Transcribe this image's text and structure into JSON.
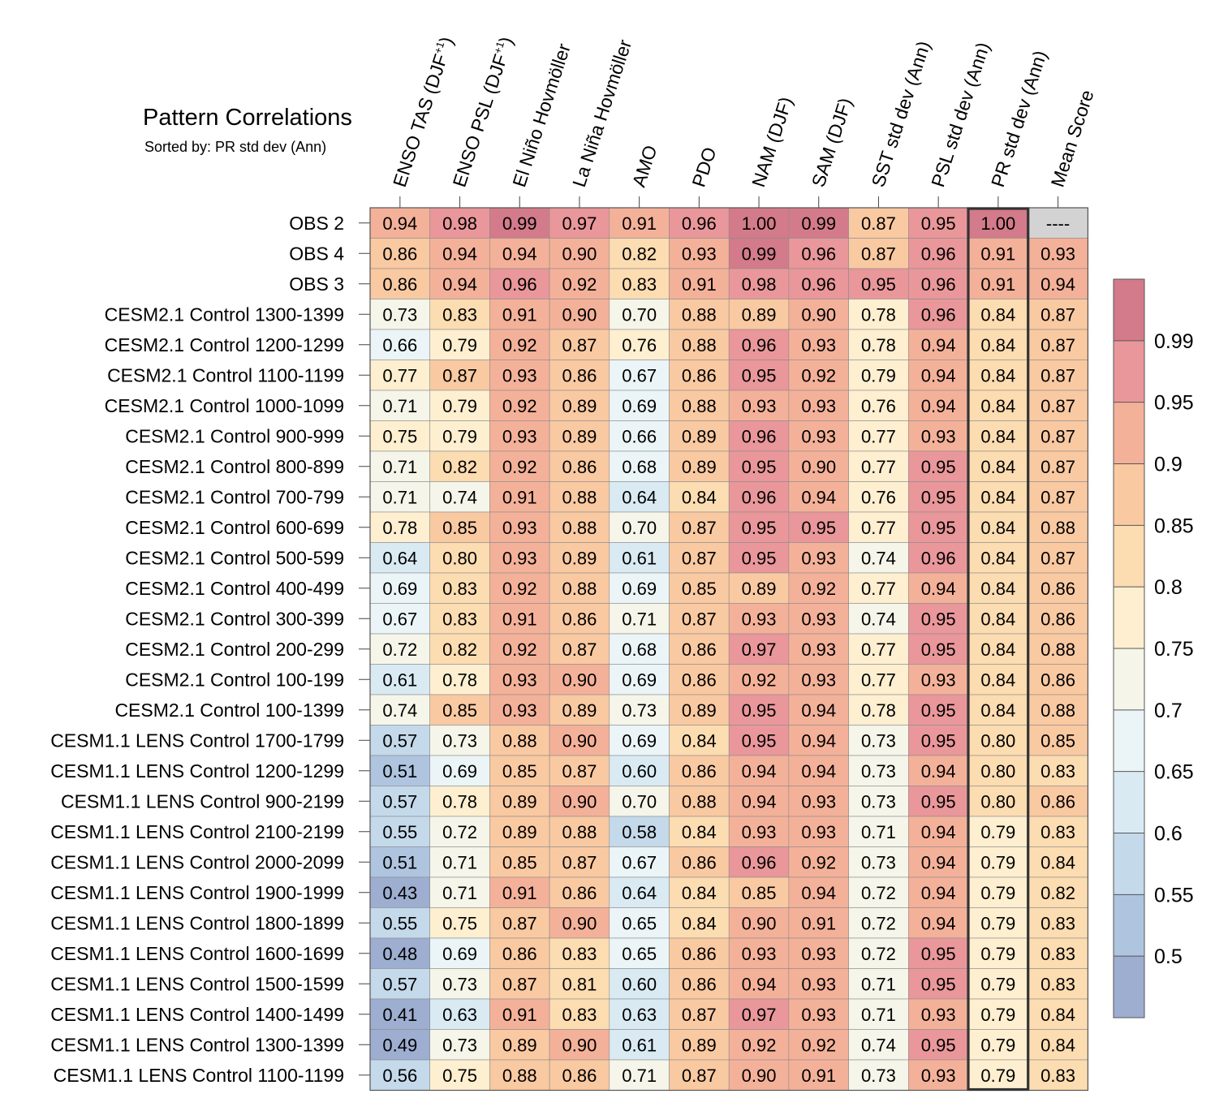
{
  "chart_data": {
    "type": "heatmap",
    "title": "Pattern Correlations",
    "subtitle": "Sorted by: PR std dev (Ann)",
    "columns": [
      {
        "label": "ENSO TAS (DJF",
        "sup": "+1",
        "tail": ")"
      },
      {
        "label": "ENSO PSL (DJF",
        "sup": "+1",
        "tail": ")"
      },
      {
        "label": "El Niño Hovmöller",
        "sup": "",
        "tail": ""
      },
      {
        "label": "La Niña Hovmöller",
        "sup": "",
        "tail": ""
      },
      {
        "label": "AMO",
        "sup": "",
        "tail": ""
      },
      {
        "label": "PDO",
        "sup": "",
        "tail": ""
      },
      {
        "label": "NAM (DJF)",
        "sup": "",
        "tail": ""
      },
      {
        "label": "SAM (DJF)",
        "sup": "",
        "tail": ""
      },
      {
        "label": "SST std dev (Ann)",
        "sup": "",
        "tail": ""
      },
      {
        "label": "PSL std dev (Ann)",
        "sup": "",
        "tail": ""
      },
      {
        "label": "PR std dev (Ann)",
        "sup": "",
        "tail": ""
      },
      {
        "label": "Mean Score",
        "sup": "",
        "tail": ""
      }
    ],
    "highlighted_column": 10,
    "missing_text": "----",
    "missing_color": "#d3d3d3",
    "rows": [
      {
        "label": "OBS 2",
        "values": [
          "0.94",
          "0.98",
          "0.99",
          "0.97",
          "0.91",
          "0.96",
          "1.00",
          "0.99",
          "0.87",
          "0.95",
          "1.00",
          null
        ]
      },
      {
        "label": "OBS 4",
        "values": [
          "0.86",
          "0.94",
          "0.94",
          "0.90",
          "0.82",
          "0.93",
          "0.99",
          "0.96",
          "0.87",
          "0.96",
          "0.91",
          "0.93"
        ]
      },
      {
        "label": "OBS 3",
        "values": [
          "0.86",
          "0.94",
          "0.96",
          "0.92",
          "0.83",
          "0.91",
          "0.98",
          "0.96",
          "0.95",
          "0.96",
          "0.91",
          "0.94"
        ]
      },
      {
        "label": "CESM2.1 Control 1300-1399",
        "values": [
          "0.73",
          "0.83",
          "0.91",
          "0.90",
          "0.70",
          "0.88",
          "0.89",
          "0.90",
          "0.78",
          "0.96",
          "0.84",
          "0.87"
        ]
      },
      {
        "label": "CESM2.1 Control 1200-1299",
        "values": [
          "0.66",
          "0.79",
          "0.92",
          "0.87",
          "0.76",
          "0.88",
          "0.96",
          "0.93",
          "0.78",
          "0.94",
          "0.84",
          "0.87"
        ]
      },
      {
        "label": "CESM2.1 Control 1100-1199",
        "values": [
          "0.77",
          "0.87",
          "0.93",
          "0.86",
          "0.67",
          "0.86",
          "0.95",
          "0.92",
          "0.79",
          "0.94",
          "0.84",
          "0.87"
        ]
      },
      {
        "label": "CESM2.1 Control 1000-1099",
        "values": [
          "0.71",
          "0.79",
          "0.92",
          "0.89",
          "0.69",
          "0.88",
          "0.93",
          "0.93",
          "0.76",
          "0.94",
          "0.84",
          "0.87"
        ]
      },
      {
        "label": "CESM2.1 Control 900-999",
        "values": [
          "0.75",
          "0.79",
          "0.93",
          "0.89",
          "0.66",
          "0.89",
          "0.96",
          "0.93",
          "0.77",
          "0.93",
          "0.84",
          "0.87"
        ]
      },
      {
        "label": "CESM2.1 Control 800-899",
        "values": [
          "0.71",
          "0.82",
          "0.92",
          "0.86",
          "0.68",
          "0.89",
          "0.95",
          "0.90",
          "0.77",
          "0.95",
          "0.84",
          "0.87"
        ]
      },
      {
        "label": "CESM2.1 Control 700-799",
        "values": [
          "0.71",
          "0.74",
          "0.91",
          "0.88",
          "0.64",
          "0.84",
          "0.96",
          "0.94",
          "0.76",
          "0.95",
          "0.84",
          "0.87"
        ]
      },
      {
        "label": "CESM2.1 Control 600-699",
        "values": [
          "0.78",
          "0.85",
          "0.93",
          "0.88",
          "0.70",
          "0.87",
          "0.95",
          "0.95",
          "0.77",
          "0.95",
          "0.84",
          "0.88"
        ]
      },
      {
        "label": "CESM2.1 Control 500-599",
        "values": [
          "0.64",
          "0.80",
          "0.93",
          "0.89",
          "0.61",
          "0.87",
          "0.95",
          "0.93",
          "0.74",
          "0.96",
          "0.84",
          "0.87"
        ]
      },
      {
        "label": "CESM2.1 Control 400-499",
        "values": [
          "0.69",
          "0.83",
          "0.92",
          "0.88",
          "0.69",
          "0.85",
          "0.89",
          "0.92",
          "0.77",
          "0.94",
          "0.84",
          "0.86"
        ]
      },
      {
        "label": "CESM2.1 Control 300-399",
        "values": [
          "0.67",
          "0.83",
          "0.91",
          "0.86",
          "0.71",
          "0.87",
          "0.93",
          "0.93",
          "0.74",
          "0.95",
          "0.84",
          "0.86"
        ]
      },
      {
        "label": "CESM2.1 Control 200-299",
        "values": [
          "0.72",
          "0.82",
          "0.92",
          "0.87",
          "0.68",
          "0.86",
          "0.97",
          "0.93",
          "0.77",
          "0.95",
          "0.84",
          "0.88"
        ]
      },
      {
        "label": "CESM2.1 Control 100-199",
        "values": [
          "0.61",
          "0.78",
          "0.93",
          "0.90",
          "0.69",
          "0.86",
          "0.92",
          "0.93",
          "0.77",
          "0.93",
          "0.84",
          "0.86"
        ]
      },
      {
        "label": "CESM2.1 Control 100-1399",
        "values": [
          "0.74",
          "0.85",
          "0.93",
          "0.89",
          "0.73",
          "0.89",
          "0.95",
          "0.94",
          "0.78",
          "0.95",
          "0.84",
          "0.88"
        ]
      },
      {
        "label": "CESM1.1 LENS Control 1700-1799",
        "values": [
          "0.57",
          "0.73",
          "0.88",
          "0.90",
          "0.69",
          "0.84",
          "0.95",
          "0.94",
          "0.73",
          "0.95",
          "0.80",
          "0.85"
        ]
      },
      {
        "label": "CESM1.1 LENS Control 1200-1299",
        "values": [
          "0.51",
          "0.69",
          "0.85",
          "0.87",
          "0.60",
          "0.86",
          "0.94",
          "0.94",
          "0.73",
          "0.94",
          "0.80",
          "0.83"
        ]
      },
      {
        "label": "CESM1.1 LENS Control 900-2199",
        "values": [
          "0.57",
          "0.78",
          "0.89",
          "0.90",
          "0.70",
          "0.88",
          "0.94",
          "0.93",
          "0.73",
          "0.95",
          "0.80",
          "0.86"
        ]
      },
      {
        "label": "CESM1.1 LENS Control 2100-2199",
        "values": [
          "0.55",
          "0.72",
          "0.89",
          "0.88",
          "0.58",
          "0.84",
          "0.93",
          "0.93",
          "0.71",
          "0.94",
          "0.79",
          "0.83"
        ]
      },
      {
        "label": "CESM1.1 LENS Control 2000-2099",
        "values": [
          "0.51",
          "0.71",
          "0.85",
          "0.87",
          "0.67",
          "0.86",
          "0.96",
          "0.92",
          "0.73",
          "0.94",
          "0.79",
          "0.84"
        ]
      },
      {
        "label": "CESM1.1 LENS Control 1900-1999",
        "values": [
          "0.43",
          "0.71",
          "0.91",
          "0.86",
          "0.64",
          "0.84",
          "0.85",
          "0.94",
          "0.72",
          "0.94",
          "0.79",
          "0.82"
        ]
      },
      {
        "label": "CESM1.1 LENS Control 1800-1899",
        "values": [
          "0.55",
          "0.75",
          "0.87",
          "0.90",
          "0.65",
          "0.84",
          "0.90",
          "0.91",
          "0.72",
          "0.94",
          "0.79",
          "0.83"
        ]
      },
      {
        "label": "CESM1.1 LENS Control 1600-1699",
        "values": [
          "0.48",
          "0.69",
          "0.86",
          "0.83",
          "0.65",
          "0.86",
          "0.93",
          "0.93",
          "0.72",
          "0.95",
          "0.79",
          "0.83"
        ]
      },
      {
        "label": "CESM1.1 LENS Control 1500-1599",
        "values": [
          "0.57",
          "0.73",
          "0.87",
          "0.81",
          "0.60",
          "0.86",
          "0.94",
          "0.93",
          "0.71",
          "0.95",
          "0.79",
          "0.83"
        ]
      },
      {
        "label": "CESM1.1 LENS Control 1400-1499",
        "values": [
          "0.41",
          "0.63",
          "0.91",
          "0.83",
          "0.63",
          "0.87",
          "0.97",
          "0.93",
          "0.71",
          "0.93",
          "0.79",
          "0.84"
        ]
      },
      {
        "label": "CESM1.1 LENS Control 1300-1399",
        "values": [
          "0.49",
          "0.73",
          "0.89",
          "0.90",
          "0.61",
          "0.89",
          "0.92",
          "0.92",
          "0.74",
          "0.95",
          "0.79",
          "0.84"
        ]
      },
      {
        "label": "CESM1.1 LENS Control 1100-1199",
        "values": [
          "0.56",
          "0.75",
          "0.88",
          "0.86",
          "0.71",
          "0.87",
          "0.90",
          "0.91",
          "0.73",
          "0.93",
          "0.79",
          "0.83"
        ]
      }
    ],
    "colorbar": {
      "levels": [
        "0.5",
        "0.55",
        "0.6",
        "0.65",
        "0.7",
        "0.75",
        "0.8",
        "0.85",
        "0.9",
        "0.95",
        "0.99"
      ],
      "colors": [
        "#9daed1",
        "#afc4df",
        "#c4d9ea",
        "#d9eaf3",
        "#ebf5f8",
        "#f5f5ea",
        "#fdefd0",
        "#fcdcb1",
        "#f9c9a2",
        "#f4b199",
        "#e9979a",
        "#d37b8a"
      ]
    }
  }
}
